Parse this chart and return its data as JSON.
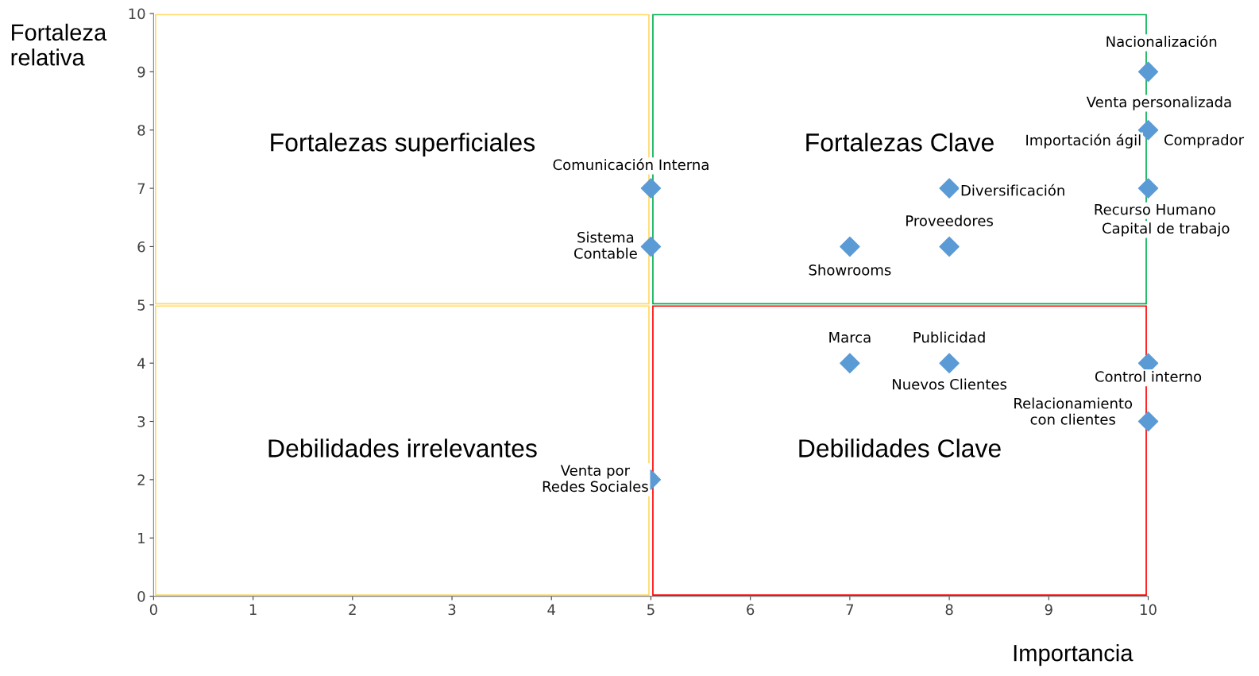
{
  "chart_data": {
    "type": "scatter",
    "xlabel": "Importancia",
    "ylabel": "Fortaleza\nrelativa",
    "x": [
      10,
      10,
      10,
      8,
      8,
      7,
      5,
      5,
      7,
      8,
      10,
      10,
      5
    ],
    "series": [
      {
        "color": "#5b9bd5",
        "values": [
          9,
          8,
          7,
          7,
          6,
          6,
          7,
          6,
          4,
          4,
          4,
          3,
          2
        ]
      }
    ],
    "marker": "diamond",
    "xlim": [
      0,
      10
    ],
    "ylim": [
      0,
      10
    ],
    "xticks": [
      0,
      1,
      2,
      3,
      4,
      5,
      6,
      7,
      8,
      9,
      10
    ],
    "yticks": [
      0,
      1,
      2,
      3,
      4,
      5,
      6,
      7,
      8,
      9,
      10
    ],
    "grid": false,
    "annotations": [
      "Fortalezas superficiales",
      "Fortalezas Clave",
      "Debilidades irrelevantes",
      "Debilidades Clave",
      {
        "text": "Nacionalización",
        "x": 10,
        "y": 9
      },
      {
        "text": "Venta personalizada",
        "x": 10,
        "y": 8
      },
      {
        "text": "Importación ágil",
        "x": 10,
        "y": 8
      },
      {
        "text": "Comprador",
        "x": 10,
        "y": 8
      },
      {
        "text": "Recurso Humano",
        "x": 10,
        "y": 7
      },
      {
        "text": "Capital de trabajo",
        "x": 10,
        "y": 7
      },
      {
        "text": "Diversificación",
        "x": 8,
        "y": 7
      },
      {
        "text": "Proveedores",
        "x": 8,
        "y": 6
      },
      {
        "text": "Showrooms",
        "x": 7,
        "y": 6
      },
      {
        "text": "Comunicación Interna",
        "x": 5,
        "y": 7
      },
      {
        "text": "Sistema\nContable",
        "x": 5,
        "y": 6
      },
      {
        "text": "Marca",
        "x": 7,
        "y": 4
      },
      {
        "text": "Publicidad",
        "x": 8,
        "y": 4
      },
      {
        "text": "Nuevos Clientes",
        "x": 8,
        "y": 4
      },
      {
        "text": "Control interno",
        "x": 10,
        "y": 4
      },
      {
        "text": "Relacionamiento\ncon clientes",
        "x": 10,
        "y": 3
      },
      {
        "text": "Venta por\nRedes Sociales",
        "x": 5,
        "y": 2
      }
    ]
  }
}
